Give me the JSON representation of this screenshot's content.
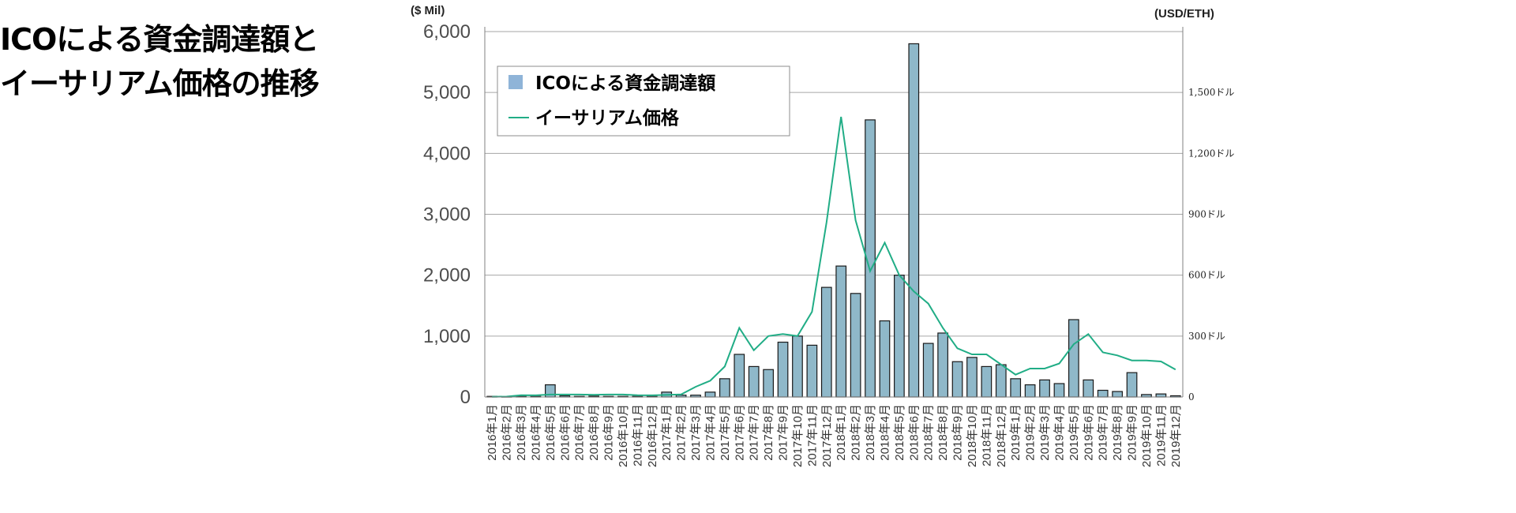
{
  "page_title": {
    "line1": "ICOによる資金調達額と",
    "line2": "イーサリアム価格の推移"
  },
  "chart_data": {
    "type": "bar+line",
    "y_left_unit": "($ Mil)",
    "y_right_unit": "(USD/ETH)",
    "y_left_ticks": [
      "6,000",
      "5,000",
      "4,000",
      "3,000",
      "2,000",
      "1,000",
      "0"
    ],
    "y_left_tick_values": [
      6000,
      5000,
      4000,
      3000,
      2000,
      1000,
      0
    ],
    "y_right_ticks": [
      "1,500ドル",
      "1,200ドル",
      "900ドル",
      "600ドル",
      "300ドル",
      "0"
    ],
    "y_right_tick_values": [
      1500,
      1200,
      900,
      600,
      300,
      0
    ],
    "ylim_left": [
      0,
      6000
    ],
    "ylim_right": [
      0,
      1800
    ],
    "grid": true,
    "legend_position": "top-left",
    "colors": {
      "bar": "#8fb8c9",
      "bar_edge": "#1a1a1a",
      "line": "#21ad86",
      "legend_bar": "#8fb4d8"
    },
    "categories": [
      "2016年1月",
      "2016年2月",
      "2016年3月",
      "2016年4月",
      "2016年5月",
      "2016年6月",
      "2016年7月",
      "2016年8月",
      "2016年9月",
      "2016年10月",
      "2016年11月",
      "2016年12月",
      "2017年1月",
      "2017年2月",
      "2017年3月",
      "2017年4月",
      "2017年5月",
      "2017年6月",
      "2017年7月",
      "2017年8月",
      "2017年9月",
      "2017年10月",
      "2017年11月",
      "2017年12月",
      "2018年1月",
      "2018年2月",
      "2018年3月",
      "2018年4月",
      "2018年5月",
      "2018年6月",
      "2018年7月",
      "2018年8月",
      "2018年9月",
      "2018年10月",
      "2018年11月",
      "2018年12月",
      "2019年1月",
      "2019年2月",
      "2019年3月",
      "2019年4月",
      "2019年5月",
      "2019年6月",
      "2019年7月",
      "2019年8月",
      "2019年9月",
      "2019年10月",
      "2019年11月",
      "2019年12月"
    ],
    "series": [
      {
        "name": "ICOによる資金調達額",
        "type": "bar",
        "axis": "left",
        "values": [
          10,
          5,
          15,
          10,
          200,
          20,
          10,
          15,
          10,
          10,
          10,
          10,
          80,
          30,
          30,
          80,
          300,
          700,
          500,
          450,
          900,
          1000,
          850,
          1800,
          2150,
          1700,
          4550,
          1250,
          2000,
          5800,
          880,
          1050,
          580,
          650,
          500,
          530,
          300,
          200,
          280,
          220,
          1270,
          280,
          110,
          90,
          400,
          40,
          50,
          20
        ]
      },
      {
        "name": "イーサリアム価格",
        "type": "line",
        "axis": "right",
        "values": [
          1,
          2,
          9,
          8,
          12,
          12,
          12,
          11,
          12,
          12,
          9,
          8,
          10,
          13,
          50,
          80,
          150,
          340,
          230,
          300,
          310,
          300,
          420,
          860,
          1380,
          870,
          620,
          760,
          600,
          520,
          460,
          340,
          240,
          210,
          210,
          160,
          110,
          140,
          140,
          165,
          260,
          310,
          220,
          205,
          180,
          180,
          175,
          135
        ]
      }
    ]
  }
}
